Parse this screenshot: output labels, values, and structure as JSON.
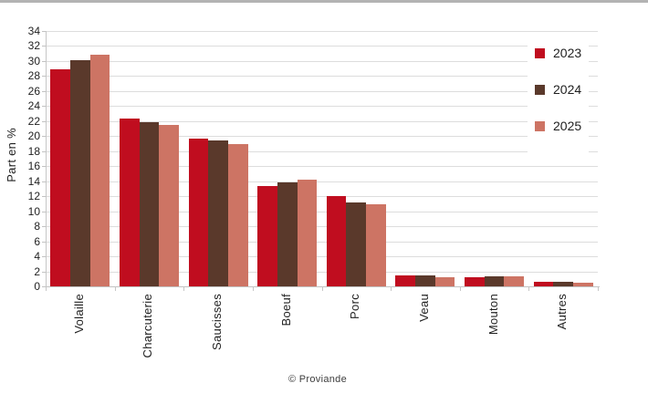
{
  "page": {
    "background": "#ffffff",
    "top_strip_color": "#b3b3b3"
  },
  "chart_data": {
    "type": "bar",
    "title": "",
    "xlabel": "",
    "ylabel": "Part en %",
    "ylim": [
      0,
      34
    ],
    "ytick_step": 2,
    "grid": true,
    "legend_position": "right-top",
    "categories": [
      "Volaille",
      "Charcuterie",
      "Saucisses",
      "Boeuf",
      "Porc",
      "Veau",
      "Mouton",
      "Autres"
    ],
    "series": [
      {
        "name": "2023",
        "color": "#c00d1f",
        "values": [
          28.9,
          22.4,
          19.7,
          13.3,
          12.0,
          1.4,
          1.2,
          0.6
        ]
      },
      {
        "name": "2024",
        "color": "#5a392b",
        "values": [
          30.1,
          21.8,
          19.4,
          13.8,
          11.2,
          1.4,
          1.3,
          0.6
        ]
      },
      {
        "name": "2025",
        "color": "#cd7464",
        "values": [
          30.8,
          21.5,
          18.9,
          14.2,
          10.9,
          1.2,
          1.3,
          0.5
        ]
      }
    ]
  },
  "footer": {
    "credit": "© Proviande"
  }
}
